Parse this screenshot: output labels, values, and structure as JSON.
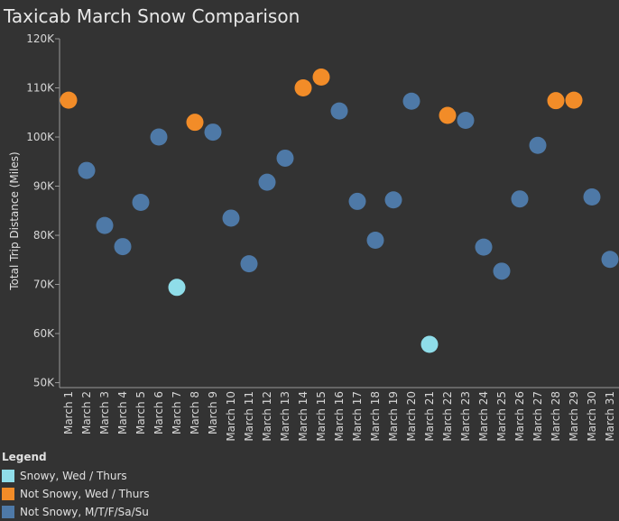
{
  "colors": {
    "background": "#333333",
    "snowy_wed_thurs": "#8fdde9",
    "not_snowy_wed_thurs": "#f28c28",
    "not_snowy_other": "#4e79a7",
    "axis": "#9a9a9a"
  },
  "chart_data": {
    "type": "scatter",
    "title": "Taxicab March Snow Comparison",
    "xlabel": "",
    "ylabel": "Total Trip Distance (Miles)",
    "ylim": [
      50000,
      120000
    ],
    "yticks": [
      50000,
      60000,
      70000,
      80000,
      90000,
      100000,
      110000,
      120000
    ],
    "ytick_labels": [
      "50K",
      "60K",
      "70K",
      "80K",
      "90K",
      "100K",
      "110K",
      "120K"
    ],
    "grid": false,
    "legend_position": "bottom-left",
    "categories": [
      "March 1",
      "March 2",
      "March 3",
      "March 4",
      "March 5",
      "March 6",
      "March 7",
      "March 8",
      "March 9",
      "March 10",
      "March 11",
      "March 12",
      "March 13",
      "March 14",
      "March 15",
      "March 16",
      "March 17",
      "March 18",
      "March 19",
      "March 20",
      "March 21",
      "March 22",
      "March 23",
      "March 24",
      "March 25",
      "March 26",
      "March 27",
      "March 28",
      "March 29",
      "March 30",
      "March 31"
    ],
    "values": [
      107500,
      93200,
      82000,
      77700,
      86700,
      100000,
      69400,
      103000,
      101000,
      83500,
      74200,
      90800,
      95700,
      110000,
      112200,
      105300,
      86900,
      79000,
      87200,
      107300,
      57800,
      104400,
      103400,
      77600,
      72700,
      87400,
      98300,
      107400,
      107500,
      87800,
      75100
    ],
    "groups": [
      "Not Snowy, Wed / Thurs",
      "Not Snowy, M/T/F/Sa/Su",
      "Not Snowy, M/T/F/Sa/Su",
      "Not Snowy, M/T/F/Sa/Su",
      "Not Snowy, M/T/F/Sa/Su",
      "Not Snowy, M/T/F/Sa/Su",
      "Snowy, Wed / Thurs",
      "Not Snowy, Wed / Thurs",
      "Not Snowy, M/T/F/Sa/Su",
      "Not Snowy, M/T/F/Sa/Su",
      "Not Snowy, M/T/F/Sa/Su",
      "Not Snowy, M/T/F/Sa/Su",
      "Not Snowy, M/T/F/Sa/Su",
      "Not Snowy, Wed / Thurs",
      "Not Snowy, Wed / Thurs",
      "Not Snowy, M/T/F/Sa/Su",
      "Not Snowy, M/T/F/Sa/Su",
      "Not Snowy, M/T/F/Sa/Su",
      "Not Snowy, M/T/F/Sa/Su",
      "Not Snowy, M/T/F/Sa/Su",
      "Snowy, Wed / Thurs",
      "Not Snowy, Wed / Thurs",
      "Not Snowy, M/T/F/Sa/Su",
      "Not Snowy, M/T/F/Sa/Su",
      "Not Snowy, M/T/F/Sa/Su",
      "Not Snowy, M/T/F/Sa/Su",
      "Not Snowy, M/T/F/Sa/Su",
      "Not Snowy, Wed / Thurs",
      "Not Snowy, Wed / Thurs",
      "Not Snowy, M/T/F/Sa/Su",
      "Not Snowy, M/T/F/Sa/Su"
    ],
    "legend": {
      "title": "Legend",
      "entries": [
        {
          "label": "Snowy, Wed / Thurs",
          "color": "#8fdde9"
        },
        {
          "label": "Not Snowy, Wed / Thurs",
          "color": "#f28c28"
        },
        {
          "label": "Not Snowy, M/T/F/Sa/Su",
          "color": "#4e79a7"
        }
      ]
    }
  }
}
